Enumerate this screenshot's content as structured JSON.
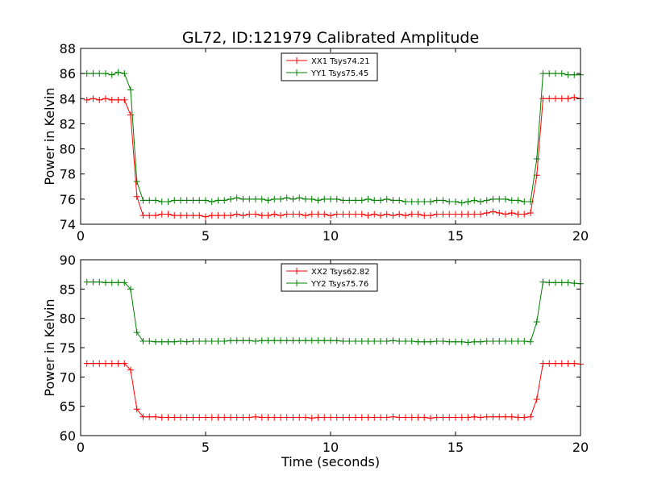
{
  "figure": {
    "title": "GL72, ID:121979 Calibrated Amplitude"
  },
  "chart_data": [
    {
      "type": "line",
      "title": "GL72, ID:121979 Calibrated Amplitude",
      "xlabel": "",
      "ylabel": "Power in Kelvin",
      "xlim": [
        0,
        20
      ],
      "ylim": [
        74,
        88
      ],
      "xticks": [
        0,
        5,
        10,
        15,
        20
      ],
      "yticks": [
        74,
        76,
        78,
        80,
        82,
        84,
        86,
        88
      ],
      "grid": false,
      "legend_position": "top-center",
      "x": [
        0.25,
        0.5,
        0.75,
        1.0,
        1.25,
        1.5,
        1.75,
        2.0,
        2.25,
        2.5,
        2.75,
        3.0,
        3.25,
        3.5,
        3.75,
        4.0,
        4.25,
        4.5,
        4.75,
        5.0,
        5.25,
        5.5,
        5.75,
        6.0,
        6.25,
        6.5,
        6.75,
        7.0,
        7.25,
        7.5,
        7.75,
        8.0,
        8.25,
        8.5,
        8.75,
        9.0,
        9.25,
        9.5,
        9.75,
        10.0,
        10.25,
        10.5,
        10.75,
        11.0,
        11.25,
        11.5,
        11.75,
        12.0,
        12.25,
        12.5,
        12.75,
        13.0,
        13.25,
        13.5,
        13.75,
        14.0,
        14.25,
        14.5,
        14.75,
        15.0,
        15.25,
        15.5,
        15.75,
        16.0,
        16.25,
        16.5,
        16.75,
        17.0,
        17.25,
        17.5,
        17.75,
        18.0,
        18.25,
        18.5,
        18.75,
        19.0,
        19.25,
        19.5,
        19.75,
        20.0
      ],
      "series": [
        {
          "name": "XX1 Tsys74.21",
          "color": "#ff0000",
          "values": [
            83.9,
            84.0,
            83.9,
            84.0,
            83.9,
            83.9,
            83.9,
            82.7,
            76.2,
            74.7,
            74.7,
            74.7,
            74.8,
            74.8,
            74.7,
            74.7,
            74.7,
            74.7,
            74.7,
            74.6,
            74.7,
            74.7,
            74.7,
            74.7,
            74.8,
            74.7,
            74.8,
            74.8,
            74.7,
            74.7,
            74.8,
            74.7,
            74.8,
            74.8,
            74.8,
            74.7,
            74.8,
            74.8,
            74.8,
            74.7,
            74.8,
            74.8,
            74.8,
            74.8,
            74.8,
            74.7,
            74.8,
            74.7,
            74.8,
            74.7,
            74.8,
            74.7,
            74.8,
            74.8,
            74.7,
            74.7,
            74.8,
            74.8,
            74.8,
            74.8,
            74.8,
            74.8,
            74.8,
            74.8,
            74.9,
            75.0,
            74.9,
            74.8,
            74.9,
            74.8,
            74.8,
            74.9,
            77.9,
            84.0,
            84.0,
            84.0,
            84.0,
            84.0,
            84.1,
            84.0
          ]
        },
        {
          "name": "YY1 Tsys75.45",
          "color": "#008000",
          "values": [
            86.0,
            86.0,
            86.0,
            86.0,
            85.9,
            86.1,
            86.0,
            84.7,
            77.4,
            75.9,
            75.9,
            75.9,
            75.8,
            75.8,
            75.9,
            75.9,
            75.9,
            75.9,
            75.9,
            75.9,
            75.8,
            75.9,
            75.9,
            76.0,
            76.1,
            76.0,
            76.0,
            76.0,
            76.0,
            75.9,
            76.0,
            76.0,
            76.1,
            76.0,
            76.1,
            76.0,
            76.0,
            75.9,
            76.0,
            76.0,
            76.0,
            75.9,
            75.9,
            75.9,
            75.9,
            76.0,
            75.9,
            75.9,
            76.0,
            75.9,
            75.9,
            75.8,
            75.8,
            75.8,
            75.8,
            75.8,
            75.9,
            75.9,
            75.8,
            75.8,
            75.7,
            75.8,
            75.9,
            75.8,
            75.9,
            76.0,
            76.0,
            76.0,
            75.9,
            75.9,
            75.8,
            75.8,
            79.2,
            86.0,
            86.0,
            86.0,
            86.0,
            85.9,
            85.9,
            85.9
          ]
        }
      ]
    },
    {
      "type": "line",
      "title": "",
      "xlabel": "Time (seconds)",
      "ylabel": "Power in Kelvin",
      "xlim": [
        0,
        20
      ],
      "ylim": [
        60,
        90
      ],
      "xticks": [
        0,
        5,
        10,
        15,
        20
      ],
      "yticks": [
        60,
        65,
        70,
        75,
        80,
        85,
        90
      ],
      "grid": false,
      "legend_position": "top-center",
      "x": [
        0.25,
        0.5,
        0.75,
        1.0,
        1.25,
        1.5,
        1.75,
        2.0,
        2.25,
        2.5,
        2.75,
        3.0,
        3.25,
        3.5,
        3.75,
        4.0,
        4.25,
        4.5,
        4.75,
        5.0,
        5.25,
        5.5,
        5.75,
        6.0,
        6.25,
        6.5,
        6.75,
        7.0,
        7.25,
        7.5,
        7.75,
        8.0,
        8.25,
        8.5,
        8.75,
        9.0,
        9.25,
        9.5,
        9.75,
        10.0,
        10.25,
        10.5,
        10.75,
        11.0,
        11.25,
        11.5,
        11.75,
        12.0,
        12.25,
        12.5,
        12.75,
        13.0,
        13.25,
        13.5,
        13.75,
        14.0,
        14.25,
        14.5,
        14.75,
        15.0,
        15.25,
        15.5,
        15.75,
        16.0,
        16.25,
        16.5,
        16.75,
        17.0,
        17.25,
        17.5,
        17.75,
        18.0,
        18.25,
        18.5,
        18.75,
        19.0,
        19.25,
        19.5,
        19.75,
        20.0
      ],
      "series": [
        {
          "name": "XX2 Tsys62.82",
          "color": "#ff0000",
          "values": [
            72.3,
            72.3,
            72.3,
            72.3,
            72.3,
            72.3,
            72.3,
            71.2,
            64.5,
            63.2,
            63.2,
            63.2,
            63.1,
            63.1,
            63.1,
            63.1,
            63.1,
            63.1,
            63.1,
            63.1,
            63.1,
            63.1,
            63.1,
            63.1,
            63.1,
            63.1,
            63.1,
            63.2,
            63.1,
            63.1,
            63.1,
            63.1,
            63.1,
            63.1,
            63.1,
            63.1,
            63.0,
            63.1,
            63.1,
            63.1,
            63.1,
            63.1,
            63.1,
            63.1,
            63.1,
            63.1,
            63.1,
            63.1,
            63.1,
            63.2,
            63.1,
            63.1,
            63.1,
            63.1,
            63.1,
            63.0,
            63.1,
            63.1,
            63.1,
            63.1,
            63.1,
            63.1,
            63.2,
            63.1,
            63.2,
            63.2,
            63.2,
            63.2,
            63.2,
            63.1,
            63.1,
            63.2,
            66.2,
            72.3,
            72.3,
            72.3,
            72.3,
            72.3,
            72.3,
            72.2
          ]
        },
        {
          "name": "YY2 Tsys75.76",
          "color": "#008000",
          "values": [
            86.2,
            86.2,
            86.2,
            86.1,
            86.1,
            86.1,
            86.1,
            85.0,
            77.6,
            76.1,
            76.1,
            76.0,
            76.0,
            76.0,
            76.0,
            76.1,
            76.0,
            76.1,
            76.1,
            76.1,
            76.1,
            76.1,
            76.1,
            76.2,
            76.2,
            76.2,
            76.2,
            76.1,
            76.2,
            76.2,
            76.2,
            76.2,
            76.2,
            76.2,
            76.2,
            76.2,
            76.2,
            76.2,
            76.2,
            76.2,
            76.2,
            76.1,
            76.1,
            76.1,
            76.1,
            76.1,
            76.1,
            76.1,
            76.1,
            76.2,
            76.1,
            76.1,
            76.1,
            76.0,
            76.0,
            76.0,
            76.1,
            76.1,
            76.0,
            76.0,
            76.0,
            75.9,
            76.0,
            76.0,
            76.1,
            76.1,
            76.1,
            76.1,
            76.1,
            76.1,
            76.1,
            76.0,
            79.4,
            86.2,
            86.1,
            86.1,
            86.1,
            86.1,
            86.0,
            85.9
          ]
        }
      ]
    }
  ]
}
